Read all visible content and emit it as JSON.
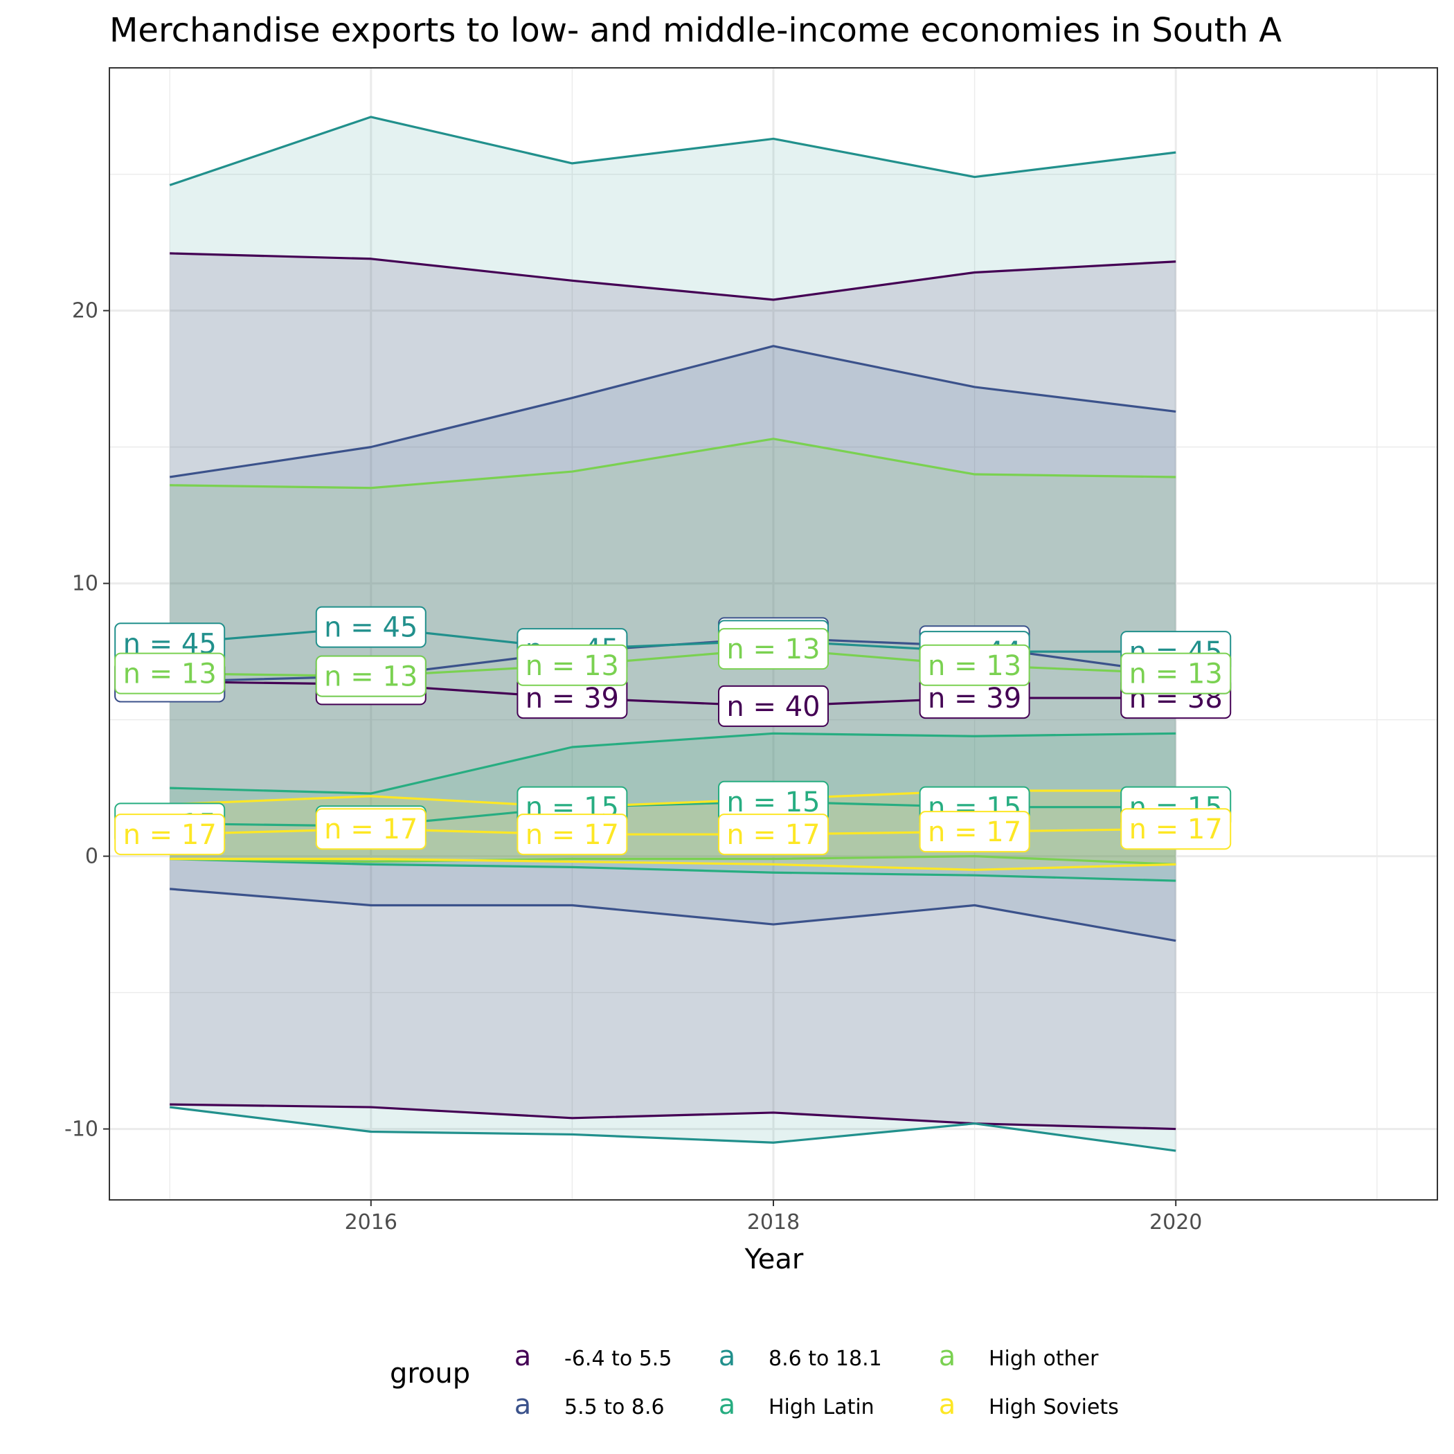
{
  "chart_data": {
    "type": "line",
    "title": "Merchandise exports to low- and middle-income economies in South A",
    "xlabel": "Year",
    "ylabel": "",
    "xlim": [
      2014.7,
      2021.3
    ],
    "ylim": [
      -12.6,
      28.9
    ],
    "x_ticks": [
      2016,
      2018,
      2020
    ],
    "y_ticks": [
      -10,
      0,
      10,
      20
    ],
    "grid": true,
    "legend_title": "group",
    "legend_position": "bottom",
    "legend_key_glyph": "a",
    "x": [
      2015,
      2016,
      2017,
      2018,
      2019,
      2020
    ],
    "series": [
      {
        "name": "-6.4 to 5.5",
        "color": "#440154",
        "fill": "#440154",
        "upper": [
          22.1,
          21.9,
          21.1,
          20.4,
          21.4,
          21.8
        ],
        "mean": [
          6.4,
          6.3,
          5.8,
          5.5,
          5.8,
          5.8
        ],
        "lower": [
          -9.1,
          -9.2,
          -9.6,
          -9.4,
          -9.8,
          -10.0
        ],
        "labels": [
          "n = 39",
          "n = 39",
          "n = 39",
          "n = 40",
          "n = 39",
          "n = 38"
        ]
      },
      {
        "name": "5.5 to 8.6",
        "color": "#3B528B",
        "fill": "#3B528B",
        "upper": [
          13.9,
          15.0,
          16.8,
          18.7,
          17.2,
          16.3
        ],
        "mean": [
          6.4,
          6.6,
          7.5,
          8.0,
          7.7,
          6.7
        ],
        "lower": [
          -1.2,
          -1.8,
          -1.8,
          -2.5,
          -1.8,
          -3.1
        ],
        "labels": [
          "n = 44",
          "n = 44",
          "n = 44",
          "n = 45",
          "n = 44",
          "n = 44"
        ]
      },
      {
        "name": "8.6 to 18.1",
        "color": "#21908C",
        "fill": "#21908C",
        "upper": [
          24.6,
          27.1,
          25.4,
          26.3,
          24.9,
          25.8
        ],
        "mean": [
          7.8,
          8.4,
          7.6,
          7.9,
          7.5,
          7.5
        ],
        "lower": [
          -9.2,
          -10.1,
          -10.2,
          -10.5,
          -9.8,
          -10.8
        ],
        "labels": [
          "n = 45",
          "n = 45",
          "n = 45",
          "n = 45",
          "n = 44",
          "n = 45"
        ]
      },
      {
        "name": "High Latin",
        "color": "#27AD81",
        "fill": "#27AD81",
        "upper": [
          2.5,
          2.3,
          4.0,
          4.5,
          4.4,
          4.5
        ],
        "mean": [
          1.2,
          1.1,
          1.8,
          2.0,
          1.8,
          1.8
        ],
        "lower": [
          -0.1,
          -0.3,
          -0.4,
          -0.6,
          -0.7,
          -0.9
        ],
        "labels": [
          "n = 15",
          "n = 15",
          "n = 15",
          "n = 15",
          "n = 15",
          "n = 15"
        ]
      },
      {
        "name": "High other",
        "color": "#7AD151",
        "fill": "#7AD151",
        "upper": [
          13.6,
          13.5,
          14.1,
          15.3,
          14.0,
          13.9
        ],
        "mean": [
          6.7,
          6.6,
          7.0,
          7.6,
          7.0,
          6.7
        ],
        "lower": [
          -0.1,
          -0.2,
          -0.1,
          -0.1,
          0.0,
          -0.3
        ],
        "labels": [
          "n = 13",
          "n = 13",
          "n = 13",
          "n = 13",
          "n = 13",
          "n = 13"
        ]
      },
      {
        "name": "High Soviets",
        "color": "#FDE725",
        "fill": "#FDE725",
        "upper": [
          1.9,
          2.2,
          1.8,
          2.1,
          2.4,
          2.4
        ],
        "mean": [
          0.8,
          1.0,
          0.8,
          0.8,
          0.9,
          1.0
        ],
        "lower": [
          -0.1,
          -0.1,
          -0.2,
          -0.3,
          -0.5,
          -0.3
        ],
        "labels": [
          "n = 17",
          "n = 17",
          "n = 17",
          "n = 17",
          "n = 17",
          "n = 17"
        ]
      }
    ]
  }
}
